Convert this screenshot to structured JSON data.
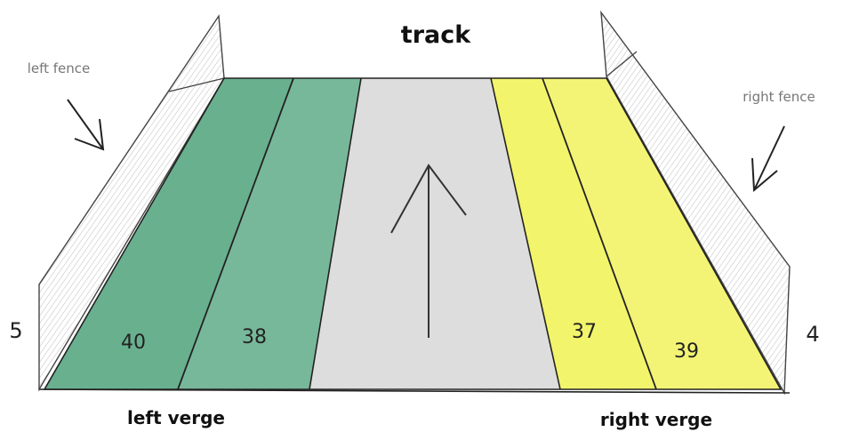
{
  "title": "track",
  "fences": {
    "left": {
      "label": "left fence",
      "number": "5"
    },
    "right": {
      "label": "right fence",
      "number": "4"
    }
  },
  "verges": {
    "left": "left verge",
    "right": "right verge"
  },
  "plots": [
    {
      "number": "40",
      "color": "#3f9a6f"
    },
    {
      "number": "38",
      "color": "#3f9a6f"
    },
    {
      "number": "37",
      "color": "#eef03a"
    },
    {
      "number": "39",
      "color": "#eef03a"
    }
  ],
  "track_color": "#d9d9d9"
}
